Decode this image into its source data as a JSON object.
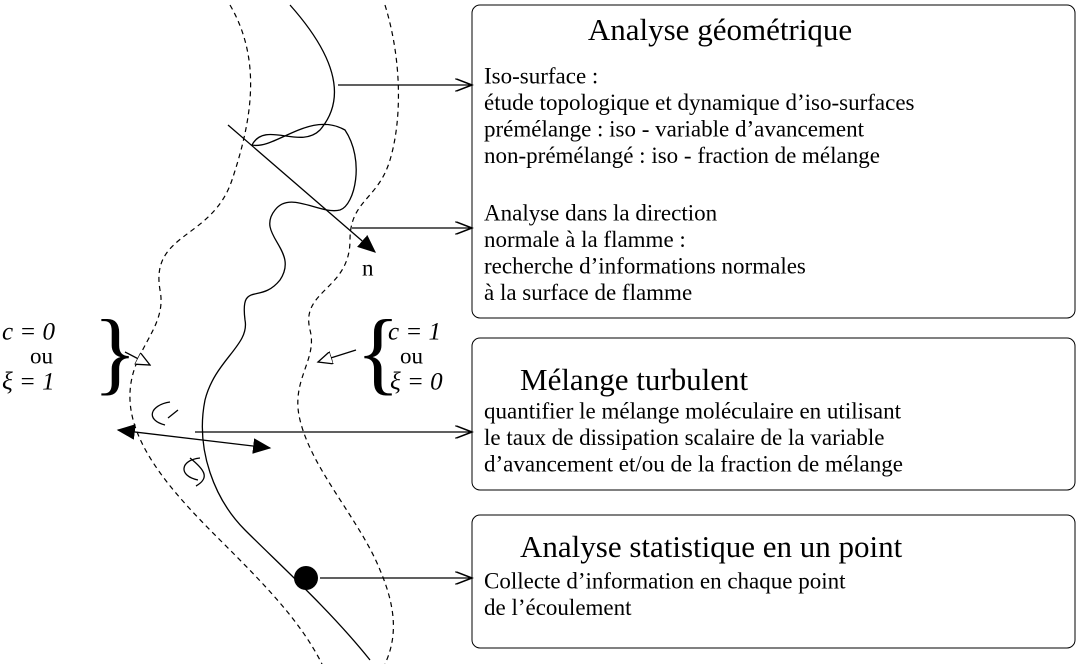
{
  "boxes": [
    {
      "title": "Analyse géométrique",
      "sections": [
        [
          "Iso-surface :",
          "étude topologique et dynamique d’iso-surfaces",
          "prémélange : iso - variable d’avancement",
          "non-prémélangé : iso - fraction de mélange"
        ],
        [
          "Analyse dans la direction",
          "normale à la flamme :",
          "recherche d’informations normales",
          "à la surface de flamme"
        ]
      ]
    },
    {
      "title": "Mélange turbulent",
      "sections": [
        [
          "quantifier le mélange moléculaire en utilisant",
          "le taux de dissipation scalaire de la variable",
          "d’avancement et/ou de la fraction de mélange"
        ]
      ]
    },
    {
      "title": "Analyse statistique en un point",
      "sections": [
        [
          "Collecte d’information en chaque point",
          "de l’écoulement"
        ]
      ]
    }
  ],
  "labels": {
    "normal": "n",
    "left": [
      "c = 0",
      "ou",
      "ξ = 1"
    ],
    "right": [
      "c = 1",
      "ou",
      "ξ = 0"
    ]
  }
}
